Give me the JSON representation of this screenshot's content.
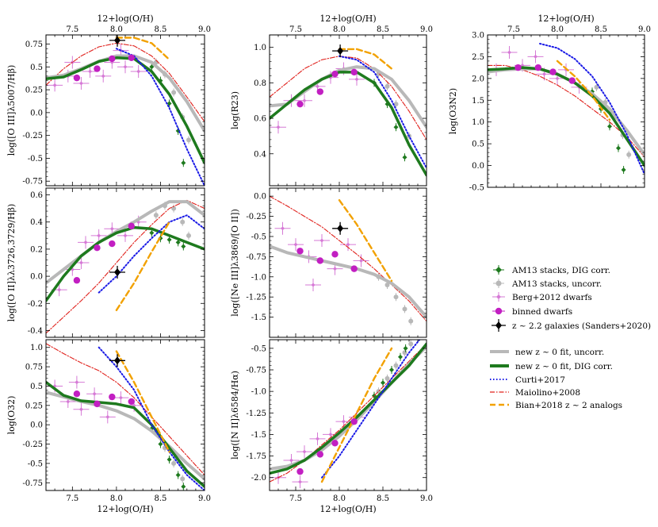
{
  "figure_x_label": "12+log(O/H)",
  "legend": {
    "stacks_dig": "AM13 stacks, DIG corr.",
    "stacks_uncorr": "AM13 stacks, uncorr.",
    "berg": "Berg+2012 dwarfs",
    "binned": "binned dwarfs",
    "highz": "z ~ 2.2 galaxies (Sanders+2020)",
    "fit_uncorr": "new z ~ 0 fit, uncorr.",
    "fit_dig": "new z ~ 0 fit, DIG corr.",
    "curti": "Curti+2017",
    "maiolino": "Maiolino+2008",
    "bian": "Bian+2018 z ~ 2 analogs"
  },
  "colors": {
    "dig": "#1e7a1e",
    "uncorr": "#b8b8b8",
    "berg": "#d67ad6",
    "binned": "#c21fc2",
    "highz": "#000000",
    "curti": "#1a1ae6",
    "maiolino": "#e0201b",
    "bian": "#f2a100"
  },
  "chart_data": [
    {
      "id": "R3",
      "type": "scatter",
      "ylabel": "log([O III]λ5007/Hβ)",
      "xlabel": "",
      "xlim": [
        7.2,
        9.0
      ],
      "ylim": [
        -0.8,
        0.85
      ],
      "xticks": [
        7.5,
        8.0,
        8.5,
        9.0
      ],
      "yticks": [
        -0.75,
        -0.5,
        -0.25,
        0.0,
        0.25,
        0.5,
        0.75
      ],
      "top_axis": true,
      "bottom_labels": false,
      "fit_dig": [
        0.37,
        0.39,
        0.47,
        0.56,
        0.6,
        0.59,
        0.45,
        0.2,
        -0.15,
        -0.55
      ],
      "fit_uncorr": [
        0.38,
        0.41,
        0.48,
        0.56,
        0.62,
        0.62,
        0.55,
        0.38,
        0.12,
        -0.2
      ],
      "curti": [
        null,
        null,
        null,
        null,
        0.7,
        0.62,
        0.4,
        0.05,
        -0.4,
        -0.8
      ],
      "maiolino": [
        0.3,
        0.48,
        0.62,
        0.72,
        0.76,
        0.73,
        0.62,
        0.43,
        0.17,
        -0.1
      ],
      "bian": [
        null,
        null,
        null,
        null,
        0.82,
        0.82,
        0.76,
        0.58,
        null,
        null
      ],
      "binned": [
        [
          7.55,
          0.38
        ],
        [
          7.78,
          0.48
        ],
        [
          7.95,
          0.59
        ],
        [
          8.17,
          0.6
        ]
      ],
      "highz": [
        8.01,
        0.79
      ],
      "stacks_dig": [
        [
          8.4,
          0.5
        ],
        [
          8.5,
          0.35
        ],
        [
          8.6,
          0.1
        ],
        [
          8.7,
          -0.2
        ],
        [
          8.76,
          -0.55
        ]
      ],
      "stacks_uncorr": [
        [
          8.45,
          0.55
        ],
        [
          8.55,
          0.42
        ],
        [
          8.65,
          0.22
        ],
        [
          8.75,
          -0.05
        ],
        [
          8.82,
          -0.3
        ]
      ],
      "berg": [
        [
          7.3,
          0.3
        ],
        [
          7.45,
          0.4
        ],
        [
          7.6,
          0.32
        ],
        [
          7.7,
          0.45
        ],
        [
          7.85,
          0.4
        ],
        [
          7.95,
          0.55
        ],
        [
          8.1,
          0.5
        ],
        [
          8.25,
          0.45
        ],
        [
          7.5,
          0.55
        ],
        [
          8.05,
          0.68
        ]
      ]
    },
    {
      "id": "R23",
      "type": "scatter",
      "ylabel": "log(R23)",
      "xlabel": "",
      "xlim": [
        7.2,
        9.0
      ],
      "ylim": [
        0.22,
        1.07
      ],
      "xticks": [
        7.5,
        8.0,
        8.5,
        9.0
      ],
      "yticks": [
        0.4,
        0.6,
        0.8,
        1.0
      ],
      "top_axis": true,
      "bottom_labels": false,
      "fit_dig": [
        0.6,
        0.68,
        0.76,
        0.82,
        0.86,
        0.86,
        0.8,
        0.66,
        0.45,
        0.28
      ],
      "fit_uncorr": [
        0.67,
        0.68,
        0.75,
        0.82,
        0.87,
        0.89,
        0.88,
        0.82,
        0.7,
        0.55
      ],
      "curti": [
        null,
        null,
        null,
        null,
        0.95,
        0.93,
        0.86,
        0.7,
        0.5,
        0.32
      ],
      "maiolino": [
        0.72,
        0.8,
        0.88,
        0.93,
        0.95,
        0.94,
        0.88,
        0.78,
        0.64,
        0.48
      ],
      "bian": [
        null,
        null,
        null,
        null,
        0.99,
        0.99,
        0.96,
        0.88,
        null,
        null
      ],
      "binned": [
        [
          7.55,
          0.68
        ],
        [
          7.78,
          0.75
        ],
        [
          7.95,
          0.85
        ],
        [
          8.17,
          0.86
        ]
      ],
      "highz": [
        8.01,
        0.98
      ],
      "stacks_dig": [
        [
          8.4,
          0.8
        ],
        [
          8.55,
          0.68
        ],
        [
          8.65,
          0.55
        ],
        [
          8.75,
          0.38
        ]
      ],
      "stacks_uncorr": [
        [
          8.45,
          0.85
        ],
        [
          8.55,
          0.78
        ],
        [
          8.65,
          0.68
        ],
        [
          8.8,
          0.5
        ]
      ],
      "berg": [
        [
          7.3,
          0.55
        ],
        [
          7.45,
          0.7
        ],
        [
          7.6,
          0.7
        ],
        [
          7.75,
          0.78
        ],
        [
          7.9,
          0.83
        ],
        [
          8.05,
          0.88
        ],
        [
          8.2,
          0.82
        ]
      ]
    },
    {
      "id": "O3N2",
      "type": "scatter",
      "ylabel": "log(O3N2)",
      "xlabel": "",
      "xlim": [
        7.2,
        9.0
      ],
      "ylim": [
        -0.5,
        3.0
      ],
      "xticks": [
        7.5,
        8.0,
        8.5,
        9.0
      ],
      "yticks": [
        -0.5,
        0.0,
        0.5,
        1.0,
        1.5,
        2.0,
        2.5,
        3.0
      ],
      "top_axis": true,
      "bottom_labels": false,
      "fit_dig": [
        2.2,
        2.22,
        2.25,
        2.22,
        2.1,
        1.9,
        1.6,
        1.2,
        0.6,
        0.0
      ],
      "fit_uncorr": [
        2.15,
        2.2,
        2.22,
        2.22,
        2.1,
        1.9,
        1.65,
        1.3,
        0.8,
        0.25
      ],
      "curti": [
        null,
        null,
        null,
        2.8,
        2.7,
        2.45,
        2.05,
        1.45,
        0.7,
        -0.2
      ],
      "maiolino": [
        2.3,
        2.3,
        2.2,
        2.05,
        1.85,
        1.6,
        1.3,
        1.0,
        0.65,
        0.2
      ],
      "bian": [
        null,
        null,
        null,
        null,
        2.4,
        2.05,
        1.6,
        1.05,
        null,
        null
      ],
      "binned": [
        [
          7.55,
          2.25
        ],
        [
          7.78,
          2.25
        ],
        [
          7.95,
          2.15
        ],
        [
          8.17,
          1.95
        ]
      ],
      "highz": null,
      "stacks_dig": [
        [
          8.4,
          1.7
        ],
        [
          8.5,
          1.3
        ],
        [
          8.6,
          0.9
        ],
        [
          8.7,
          0.4
        ],
        [
          8.76,
          -0.1
        ]
      ],
      "stacks_uncorr": [
        [
          8.45,
          1.8
        ],
        [
          8.55,
          1.45
        ],
        [
          8.65,
          1.1
        ],
        [
          8.75,
          0.7
        ],
        [
          8.82,
          0.25
        ]
      ],
      "berg": [
        [
          7.3,
          2.2
        ],
        [
          7.45,
          2.6
        ],
        [
          7.6,
          2.3
        ],
        [
          7.75,
          2.5
        ],
        [
          7.85,
          2.1
        ],
        [
          8.0,
          2.0
        ],
        [
          8.1,
          2.2
        ],
        [
          8.25,
          1.8
        ]
      ]
    },
    {
      "id": "O2",
      "type": "scatter",
      "ylabel": "log([O II]λλ3726,3729/Hβ)",
      "xlabel": "",
      "xlim": [
        7.2,
        9.0
      ],
      "ylim": [
        -0.45,
        0.65
      ],
      "xticks": [
        7.5,
        8.0,
        8.5,
        9.0
      ],
      "yticks": [
        -0.4,
        -0.2,
        0.0,
        0.2,
        0.4,
        0.6
      ],
      "top_axis": false,
      "bottom_labels": false,
      "fit_dig": [
        -0.18,
        0.0,
        0.15,
        0.25,
        0.32,
        0.36,
        0.35,
        0.3,
        0.25,
        0.2
      ],
      "fit_uncorr": [
        -0.05,
        0.05,
        0.15,
        0.25,
        0.33,
        0.4,
        0.48,
        0.55,
        0.55,
        0.45
      ],
      "curti": [
        null,
        null,
        null,
        -0.12,
        0.0,
        0.15,
        0.28,
        0.4,
        0.45,
        0.35
      ],
      "maiolino": [
        -0.42,
        -0.3,
        -0.18,
        -0.05,
        0.1,
        0.25,
        0.38,
        0.5,
        0.56,
        0.5
      ],
      "bian": [
        null,
        null,
        null,
        null,
        -0.25,
        -0.05,
        0.18,
        0.4,
        null,
        null
      ],
      "binned": [
        [
          7.55,
          -0.03
        ],
        [
          7.78,
          0.21
        ],
        [
          7.95,
          0.24
        ],
        [
          8.17,
          0.37
        ]
      ],
      "highz": [
        8.01,
        0.03
      ],
      "stacks_dig": [
        [
          8.4,
          0.32
        ],
        [
          8.5,
          0.28
        ],
        [
          8.6,
          0.27
        ],
        [
          8.7,
          0.25
        ],
        [
          8.76,
          0.22
        ]
      ],
      "stacks_uncorr": [
        [
          8.45,
          0.45
        ],
        [
          8.55,
          0.52
        ],
        [
          8.65,
          0.5
        ],
        [
          8.75,
          0.4
        ],
        [
          8.82,
          0.3
        ]
      ],
      "berg": [
        [
          7.35,
          -0.1
        ],
        [
          7.5,
          0.05
        ],
        [
          7.65,
          0.25
        ],
        [
          7.8,
          0.3
        ],
        [
          7.95,
          0.35
        ],
        [
          8.1,
          0.3
        ],
        [
          8.25,
          0.4
        ],
        [
          7.6,
          0.1
        ]
      ]
    },
    {
      "id": "Ne3O2",
      "type": "scatter",
      "ylabel": "log([Ne III]λ3869/[O II])",
      "xlabel": "",
      "xlim": [
        7.2,
        9.0
      ],
      "ylim": [
        -1.75,
        0.1
      ],
      "xticks": [
        7.5,
        8.0,
        8.5,
        9.0
      ],
      "yticks": [
        -1.5,
        -1.25,
        -1.0,
        -0.75,
        -0.5,
        -0.25,
        0.0
      ],
      "top_axis": false,
      "bottom_labels": false,
      "fit_dig": null,
      "fit_uncorr": [
        -0.62,
        -0.7,
        -0.75,
        -0.8,
        -0.85,
        -0.9,
        -0.97,
        -1.08,
        -1.25,
        -1.5
      ],
      "curti": null,
      "maiolino": [
        0.0,
        -0.12,
        -0.25,
        -0.38,
        -0.55,
        -0.72,
        -0.9,
        -1.1,
        -1.3,
        -1.55
      ],
      "bian": [
        null,
        null,
        null,
        null,
        -0.05,
        -0.35,
        -0.7,
        -1.05,
        null,
        null
      ],
      "binned": [
        [
          7.55,
          -0.68
        ],
        [
          7.78,
          -0.8
        ],
        [
          7.95,
          -0.72
        ],
        [
          8.17,
          -0.9
        ]
      ],
      "highz": [
        8.01,
        -0.4
      ],
      "stacks_dig": null,
      "stacks_uncorr": [
        [
          8.45,
          -1.0
        ],
        [
          8.55,
          -1.1
        ],
        [
          8.65,
          -1.25
        ],
        [
          8.75,
          -1.4
        ],
        [
          8.82,
          -1.55
        ]
      ],
      "berg": [
        [
          7.35,
          -0.4
        ],
        [
          7.5,
          -0.6
        ],
        [
          7.65,
          -0.75
        ],
        [
          7.8,
          -0.55
        ],
        [
          7.95,
          -0.9
        ],
        [
          8.1,
          -0.6
        ],
        [
          8.25,
          -0.8
        ],
        [
          7.7,
          -1.1
        ]
      ]
    },
    {
      "id": "O32",
      "type": "scatter",
      "ylabel": "log(O32)",
      "xlabel": "12+log(O/H)",
      "xlim": [
        7.2,
        9.0
      ],
      "ylim": [
        -0.85,
        1.1
      ],
      "xticks": [
        7.5,
        8.0,
        8.5,
        9.0
      ],
      "yticks": [
        -0.75,
        -0.5,
        -0.25,
        0.0,
        0.25,
        0.5,
        0.75,
        1.0
      ],
      "top_axis": false,
      "bottom_labels": true,
      "fit_dig": [
        0.55,
        0.38,
        0.31,
        0.29,
        0.27,
        0.22,
        0.0,
        -0.3,
        -0.6,
        -0.8
      ],
      "fit_uncorr": [
        0.42,
        0.36,
        0.3,
        0.25,
        0.18,
        0.08,
        -0.08,
        -0.28,
        -0.5,
        -0.7
      ],
      "curti": [
        null,
        null,
        null,
        1.0,
        0.75,
        0.45,
        0.0,
        -0.35,
        -0.65,
        -0.85
      ],
      "maiolino": [
        1.05,
        0.92,
        0.8,
        0.7,
        0.55,
        0.35,
        0.1,
        -0.15,
        -0.4,
        -0.65
      ],
      "bian": [
        null,
        null,
        null,
        null,
        0.95,
        0.55,
        0.1,
        -0.35,
        null,
        null
      ],
      "binned": [
        [
          7.55,
          0.4
        ],
        [
          7.78,
          0.27
        ],
        [
          7.95,
          0.36
        ],
        [
          8.17,
          0.3
        ]
      ],
      "highz": [
        8.01,
        0.83
      ],
      "stacks_dig": [
        [
          8.4,
          -0.05
        ],
        [
          8.5,
          -0.25
        ],
        [
          8.6,
          -0.45
        ],
        [
          8.7,
          -0.65
        ],
        [
          8.76,
          -0.8
        ]
      ],
      "stacks_uncorr": [
        [
          8.45,
          -0.1
        ],
        [
          8.55,
          -0.3
        ],
        [
          8.65,
          -0.5
        ],
        [
          8.75,
          -0.7
        ]
      ],
      "berg": [
        [
          7.3,
          0.5
        ],
        [
          7.45,
          0.3
        ],
        [
          7.6,
          0.2
        ],
        [
          7.75,
          0.4
        ],
        [
          7.9,
          0.1
        ],
        [
          8.05,
          0.35
        ],
        [
          8.2,
          0.25
        ],
        [
          7.55,
          0.55
        ]
      ]
    },
    {
      "id": "N2",
      "type": "scatter",
      "ylabel": "log([N II]λ6584/Hα)",
      "xlabel": "12+log(O/H)",
      "xlim": [
        7.2,
        9.0
      ],
      "ylim": [
        -2.15,
        -0.4
      ],
      "xticks": [
        7.5,
        8.0,
        8.5,
        9.0
      ],
      "yticks": [
        -2.0,
        -1.75,
        -1.5,
        -1.25,
        -1.0,
        -0.75,
        -0.5
      ],
      "top_axis": false,
      "bottom_labels": true,
      "fit_dig": [
        -1.95,
        -1.9,
        -1.8,
        -1.65,
        -1.48,
        -1.3,
        -1.1,
        -0.9,
        -0.7,
        -0.45
      ],
      "fit_uncorr": [
        -1.9,
        -1.87,
        -1.8,
        -1.68,
        -1.52,
        -1.33,
        -1.12,
        -0.9,
        -0.68,
        -0.48
      ],
      "curti": [
        null,
        null,
        null,
        -2.0,
        -1.75,
        -1.45,
        -1.15,
        -0.85,
        -0.55,
        -0.3
      ],
      "maiolino": [
        -2.05,
        -1.95,
        -1.8,
        -1.62,
        -1.45,
        -1.25,
        -1.05,
        -0.85,
        -0.65,
        -0.45
      ],
      "bian": [
        null,
        null,
        null,
        -2.05,
        -1.65,
        -1.25,
        -0.85,
        -0.5,
        null,
        null
      ],
      "binned": [
        [
          7.55,
          -1.93
        ],
        [
          7.78,
          -1.73
        ],
        [
          7.95,
          -1.6
        ],
        [
          8.17,
          -1.35
        ]
      ],
      "highz": null,
      "stacks_dig": [
        [
          8.4,
          -1.05
        ],
        [
          8.5,
          -0.9
        ],
        [
          8.6,
          -0.75
        ],
        [
          8.7,
          -0.6
        ],
        [
          8.76,
          -0.5
        ]
      ],
      "stacks_uncorr": [
        [
          8.45,
          -1.0
        ],
        [
          8.55,
          -0.85
        ],
        [
          8.65,
          -0.7
        ],
        [
          8.75,
          -0.55
        ],
        [
          8.82,
          -0.45
        ]
      ],
      "berg": [
        [
          7.3,
          -2.0
        ],
        [
          7.45,
          -1.8
        ],
        [
          7.6,
          -1.7
        ],
        [
          7.75,
          -1.55
        ],
        [
          7.9,
          -1.5
        ],
        [
          8.05,
          -1.35
        ],
        [
          8.2,
          -1.3
        ],
        [
          7.55,
          -2.05
        ]
      ]
    }
  ]
}
